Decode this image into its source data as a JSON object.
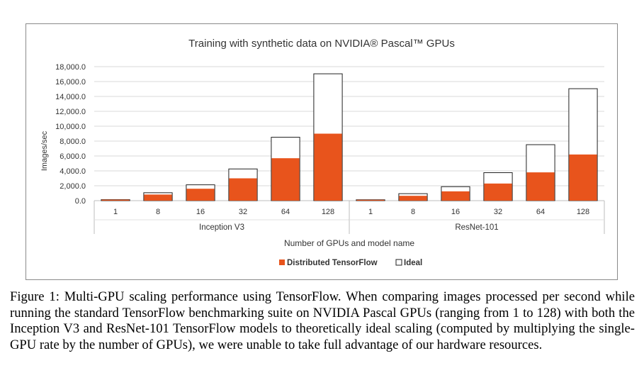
{
  "chart_data": {
    "type": "bar",
    "title": "Training with synthetic data on NVIDIA® Pascal™ GPUs",
    "ylabel": "Images/sec",
    "xlabel": "Number of GPUs and model name",
    "ylim": [
      0,
      18000
    ],
    "yticks": [
      "0.0",
      "2,000.0",
      "4,000.0",
      "6,000.0",
      "8,000.0",
      "10,000.0",
      "12,000.0",
      "14,000.0",
      "16,000.0",
      "18,000.0"
    ],
    "grid": true,
    "legend_position": "bottom",
    "groups": [
      {
        "name": "Inception V3",
        "categories": [
          "1",
          "8",
          "16",
          "32",
          "64",
          "128"
        ],
        "distributed": [
          130,
          820,
          1600,
          3000,
          5700,
          9000
        ],
        "ideal": [
          133,
          1065,
          2130,
          4260,
          8520,
          17040
        ]
      },
      {
        "name": "ResNet-101",
        "categories": [
          "1",
          "8",
          "16",
          "32",
          "64",
          "128"
        ],
        "distributed": [
          110,
          650,
          1250,
          2300,
          3800,
          6200
        ],
        "ideal": [
          118,
          940,
          1880,
          3760,
          7520,
          15040
        ]
      }
    ],
    "series": [
      {
        "name": "Distributed TensorFlow",
        "color": "#e8541c"
      },
      {
        "name": "Ideal",
        "color": "#ffffff"
      }
    ]
  },
  "caption": "Figure 1: Multi-GPU scaling performance using TensorFlow. When comparing images processed per second while running the standard TensorFlow benchmarking suite on NVIDIA Pascal GPUs (ranging from 1 to 128) with both the Inception V3 and ResNet-101 TensorFlow models to theoretically ideal scaling (computed by multiplying the single-GPU rate by the number of GPUs), we were unable to take full advantage of our hardware resources."
}
